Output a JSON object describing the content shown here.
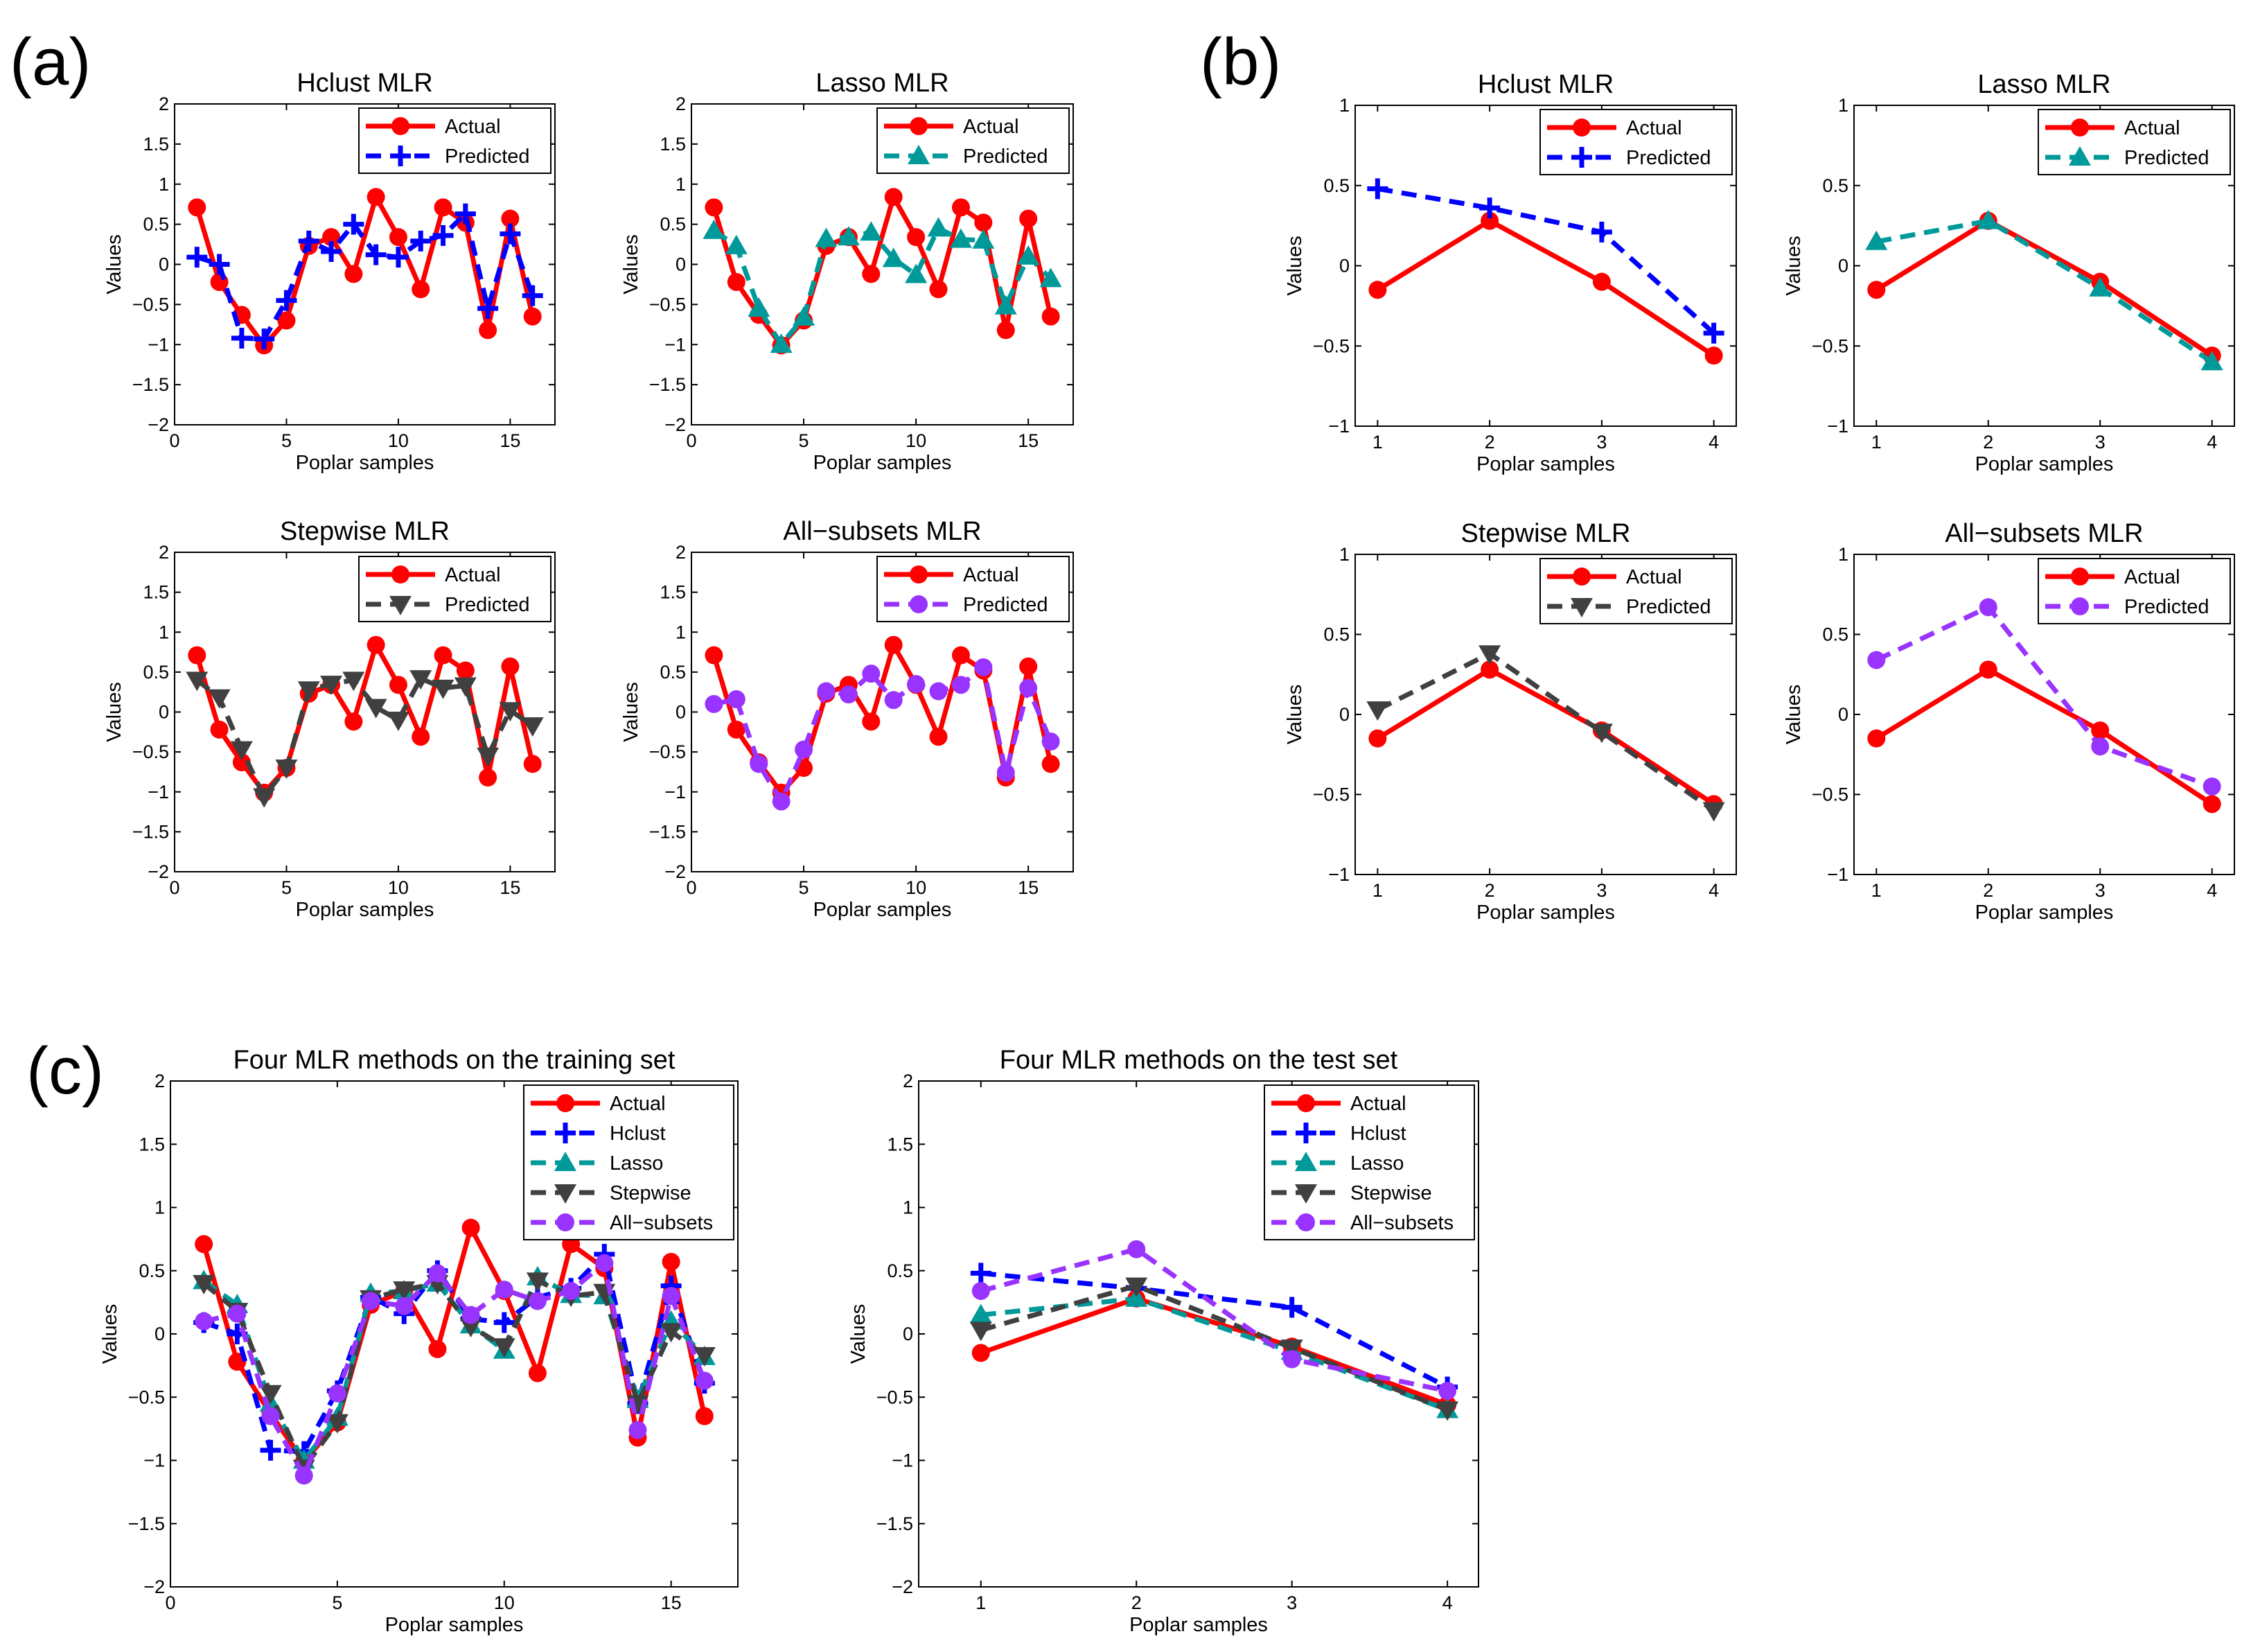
{
  "panel_labels": [
    "(a)",
    "(b)",
    "(c)"
  ],
  "series_styles": {
    "actual": {
      "color": "#ff0000",
      "dash": "solid",
      "marker": "circle"
    },
    "hclust": {
      "color": "#0000ff",
      "dash": "dashed",
      "marker": "plus"
    },
    "lasso": {
      "color": "#009999",
      "dash": "dashed",
      "marker": "triangle-up"
    },
    "stepwise": {
      "color": "#404040",
      "dash": "dashed",
      "marker": "triangle-down"
    },
    "allsubsets": {
      "color": "#9933ff",
      "dash": "dashed",
      "marker": "circle"
    }
  },
  "chart_data": [
    {
      "panel": "a",
      "type": "line",
      "title": "Hclust MLR",
      "xlabel": "Poplar samples",
      "ylabel": "Values",
      "xlim": [
        0,
        17
      ],
      "ylim": [
        -2,
        2
      ],
      "xticks": [
        0,
        5,
        10,
        15
      ],
      "yticks": [
        -2,
        -1.5,
        -1,
        -0.5,
        0,
        0.5,
        1,
        1.5,
        2
      ],
      "x": [
        1,
        2,
        3,
        4,
        5,
        6,
        7,
        8,
        9,
        10,
        11,
        12,
        13,
        14,
        15,
        16
      ],
      "series": [
        {
          "name": "Actual",
          "key": "actual",
          "values": [
            0.71,
            -0.22,
            -0.63,
            -1.01,
            -0.7,
            0.23,
            0.34,
            -0.12,
            0.84,
            0.34,
            -0.31,
            0.71,
            0.52,
            -0.82,
            0.57,
            -0.65
          ]
        },
        {
          "name": "Predicted",
          "key": "hclust",
          "values": [
            0.09,
            0.0,
            -0.92,
            -0.93,
            -0.45,
            0.29,
            0.16,
            0.5,
            0.12,
            0.09,
            0.29,
            0.36,
            0.63,
            -0.55,
            0.38,
            -0.39
          ]
        }
      ]
    },
    {
      "panel": "a",
      "type": "line",
      "title": "Lasso MLR",
      "xlabel": "Poplar samples",
      "ylabel": "Values",
      "xlim": [
        0,
        17
      ],
      "ylim": [
        -2,
        2
      ],
      "xticks": [
        0,
        5,
        10,
        15
      ],
      "yticks": [
        -2,
        -1.5,
        -1,
        -0.5,
        0,
        0.5,
        1,
        1.5,
        2
      ],
      "x": [
        1,
        2,
        3,
        4,
        5,
        6,
        7,
        8,
        9,
        10,
        11,
        12,
        13,
        14,
        15,
        16
      ],
      "series": [
        {
          "name": "Actual",
          "key": "actual",
          "values": [
            0.71,
            -0.22,
            -0.63,
            -1.01,
            -0.7,
            0.23,
            0.34,
            -0.12,
            0.84,
            0.34,
            -0.31,
            0.71,
            0.52,
            -0.82,
            0.57,
            -0.65
          ]
        },
        {
          "name": "Predicted",
          "key": "lasso",
          "values": [
            0.42,
            0.23,
            -0.55,
            -1.0,
            -0.66,
            0.32,
            0.34,
            0.4,
            0.07,
            -0.13,
            0.45,
            0.31,
            0.3,
            -0.52,
            0.1,
            -0.18
          ]
        }
      ]
    },
    {
      "panel": "a",
      "type": "line",
      "title": "Stepwise MLR",
      "xlabel": "Poplar samples",
      "ylabel": "Values",
      "xlim": [
        0,
        17
      ],
      "ylim": [
        -2,
        2
      ],
      "xticks": [
        0,
        5,
        10,
        15
      ],
      "yticks": [
        -2,
        -1.5,
        -1,
        -0.5,
        0,
        0.5,
        1,
        1.5,
        2
      ],
      "x": [
        1,
        2,
        3,
        4,
        5,
        6,
        7,
        8,
        9,
        10,
        11,
        12,
        13,
        14,
        15,
        16
      ],
      "series": [
        {
          "name": "Actual",
          "key": "actual",
          "values": [
            0.71,
            -0.22,
            -0.63,
            -1.01,
            -0.7,
            0.23,
            0.34,
            -0.12,
            0.84,
            0.34,
            -0.31,
            0.71,
            0.52,
            -0.82,
            0.57,
            -0.65
          ]
        },
        {
          "name": "Predicted",
          "key": "stepwise",
          "values": [
            0.4,
            0.18,
            -0.47,
            -1.06,
            -0.7,
            0.28,
            0.35,
            0.4,
            0.06,
            -0.1,
            0.42,
            0.3,
            0.33,
            -0.55,
            0.02,
            -0.17
          ]
        }
      ]
    },
    {
      "panel": "a",
      "type": "line",
      "title": "All−subsets MLR",
      "xlabel": "Poplar samples",
      "ylabel": "Values",
      "xlim": [
        0,
        17
      ],
      "ylim": [
        -2,
        2
      ],
      "xticks": [
        0,
        5,
        10,
        15
      ],
      "yticks": [
        -2,
        -1.5,
        -1,
        -0.5,
        0,
        0.5,
        1,
        1.5,
        2
      ],
      "x": [
        1,
        2,
        3,
        4,
        5,
        6,
        7,
        8,
        9,
        10,
        11,
        12,
        13,
        14,
        15,
        16
      ],
      "series": [
        {
          "name": "Actual",
          "key": "actual",
          "values": [
            0.71,
            -0.22,
            -0.63,
            -1.01,
            -0.7,
            0.23,
            0.34,
            -0.12,
            0.84,
            0.34,
            -0.31,
            0.71,
            0.52,
            -0.82,
            0.57,
            -0.65
          ]
        },
        {
          "name": "Predicted",
          "key": "allsubsets",
          "values": [
            0.1,
            0.16,
            -0.65,
            -1.12,
            -0.47,
            0.26,
            0.22,
            0.48,
            0.15,
            0.35,
            0.26,
            0.34,
            0.56,
            -0.76,
            0.3,
            -0.37
          ]
        }
      ]
    },
    {
      "panel": "b",
      "type": "line",
      "title": "Hclust MLR",
      "xlabel": "Poplar samples",
      "ylabel": "Values",
      "xlim": [
        0.8,
        4.2
      ],
      "ylim": [
        -1,
        1
      ],
      "xticks": [
        1,
        2,
        3,
        4
      ],
      "yticks": [
        -1,
        -0.5,
        0,
        0.5,
        1
      ],
      "x": [
        1,
        2,
        3,
        4
      ],
      "series": [
        {
          "name": "Actual",
          "key": "actual",
          "values": [
            -0.15,
            0.28,
            -0.1,
            -0.56
          ]
        },
        {
          "name": "Predicted",
          "key": "hclust",
          "values": [
            0.48,
            0.36,
            0.21,
            -0.42
          ]
        }
      ]
    },
    {
      "panel": "b",
      "type": "line",
      "title": "Lasso MLR",
      "xlabel": "Poplar samples",
      "ylabel": "Values",
      "xlim": [
        0.8,
        4.2
      ],
      "ylim": [
        -1,
        1
      ],
      "xticks": [
        1,
        2,
        3,
        4
      ],
      "yticks": [
        -1,
        -0.5,
        0,
        0.5,
        1
      ],
      "x": [
        1,
        2,
        3,
        4
      ],
      "series": [
        {
          "name": "Actual",
          "key": "actual",
          "values": [
            -0.15,
            0.28,
            -0.1,
            -0.56
          ]
        },
        {
          "name": "Predicted",
          "key": "lasso",
          "values": [
            0.15,
            0.28,
            -0.14,
            -0.6
          ]
        }
      ]
    },
    {
      "panel": "b",
      "type": "line",
      "title": "Stepwise MLR",
      "xlabel": "Poplar samples",
      "ylabel": "Values",
      "xlim": [
        0.8,
        4.2
      ],
      "ylim": [
        -1,
        1
      ],
      "xticks": [
        1,
        2,
        3,
        4
      ],
      "yticks": [
        -1,
        -0.5,
        0,
        0.5,
        1
      ],
      "x": [
        1,
        2,
        3,
        4
      ],
      "series": [
        {
          "name": "Actual",
          "key": "actual",
          "values": [
            -0.15,
            0.28,
            -0.1,
            -0.56
          ]
        },
        {
          "name": "Predicted",
          "key": "stepwise",
          "values": [
            0.03,
            0.38,
            -0.11,
            -0.6
          ]
        }
      ]
    },
    {
      "panel": "b",
      "type": "line",
      "title": "All−subsets MLR",
      "xlabel": "Poplar samples",
      "ylabel": "Values",
      "xlim": [
        0.8,
        4.2
      ],
      "ylim": [
        -1,
        1
      ],
      "xticks": [
        1,
        2,
        3,
        4
      ],
      "yticks": [
        -1,
        -0.5,
        0,
        0.5,
        1
      ],
      "x": [
        1,
        2,
        3,
        4
      ],
      "series": [
        {
          "name": "Actual",
          "key": "actual",
          "values": [
            -0.15,
            0.28,
            -0.1,
            -0.56
          ]
        },
        {
          "name": "Predicted",
          "key": "allsubsets",
          "values": [
            0.34,
            0.67,
            -0.2,
            -0.45
          ]
        }
      ]
    },
    {
      "panel": "c",
      "type": "line",
      "title": "Four MLR methods on the training set",
      "xlabel": "Poplar samples",
      "ylabel": "Values",
      "xlim": [
        0,
        17
      ],
      "ylim": [
        -2,
        2
      ],
      "xticks": [
        0,
        5,
        10,
        15
      ],
      "yticks": [
        -2,
        -1.5,
        -1,
        -0.5,
        0,
        0.5,
        1,
        1.5,
        2
      ],
      "x": [
        1,
        2,
        3,
        4,
        5,
        6,
        7,
        8,
        9,
        10,
        11,
        12,
        13,
        14,
        15,
        16
      ],
      "series": [
        {
          "name": "Actual",
          "key": "actual",
          "values": [
            0.71,
            -0.22,
            -0.63,
            -1.01,
            -0.7,
            0.23,
            0.34,
            -0.12,
            0.84,
            0.34,
            -0.31,
            0.71,
            0.52,
            -0.82,
            0.57,
            -0.65
          ]
        },
        {
          "name": "Hclust",
          "key": "hclust",
          "values": [
            0.09,
            0.0,
            -0.92,
            -0.93,
            -0.45,
            0.29,
            0.16,
            0.5,
            0.12,
            0.09,
            0.29,
            0.36,
            0.63,
            -0.55,
            0.38,
            -0.39
          ]
        },
        {
          "name": "Lasso",
          "key": "lasso",
          "values": [
            0.42,
            0.23,
            -0.55,
            -1.0,
            -0.66,
            0.32,
            0.34,
            0.4,
            0.07,
            -0.13,
            0.45,
            0.31,
            0.3,
            -0.52,
            0.1,
            -0.18
          ]
        },
        {
          "name": "Stepwise",
          "key": "stepwise",
          "values": [
            0.4,
            0.18,
            -0.47,
            -1.06,
            -0.7,
            0.28,
            0.35,
            0.4,
            0.06,
            -0.1,
            0.42,
            0.3,
            0.33,
            -0.55,
            0.02,
            -0.17
          ]
        },
        {
          "name": "All−subsets",
          "key": "allsubsets",
          "values": [
            0.1,
            0.16,
            -0.65,
            -1.12,
            -0.47,
            0.26,
            0.22,
            0.48,
            0.15,
            0.35,
            0.26,
            0.34,
            0.56,
            -0.76,
            0.3,
            -0.37
          ]
        }
      ]
    },
    {
      "panel": "c",
      "type": "line",
      "title": "Four MLR methods on the test set",
      "xlabel": "Poplar samples",
      "ylabel": "Values",
      "xlim": [
        0.6,
        4.2
      ],
      "ylim": [
        -2,
        2
      ],
      "xticks": [
        1,
        2,
        3,
        4
      ],
      "yticks": [
        -2,
        -1.5,
        -1,
        -0.5,
        0,
        0.5,
        1,
        1.5,
        2
      ],
      "x": [
        1,
        2,
        3,
        4
      ],
      "series": [
        {
          "name": "Actual",
          "key": "actual",
          "values": [
            -0.15,
            0.28,
            -0.1,
            -0.56
          ]
        },
        {
          "name": "Hclust",
          "key": "hclust",
          "values": [
            0.48,
            0.36,
            0.21,
            -0.42
          ]
        },
        {
          "name": "Lasso",
          "key": "lasso",
          "values": [
            0.15,
            0.28,
            -0.14,
            -0.6
          ]
        },
        {
          "name": "Stepwise",
          "key": "stepwise",
          "values": [
            0.03,
            0.38,
            -0.11,
            -0.6
          ]
        },
        {
          "name": "All−subsets",
          "key": "allsubsets",
          "values": [
            0.34,
            0.67,
            -0.2,
            -0.45
          ]
        }
      ]
    }
  ]
}
